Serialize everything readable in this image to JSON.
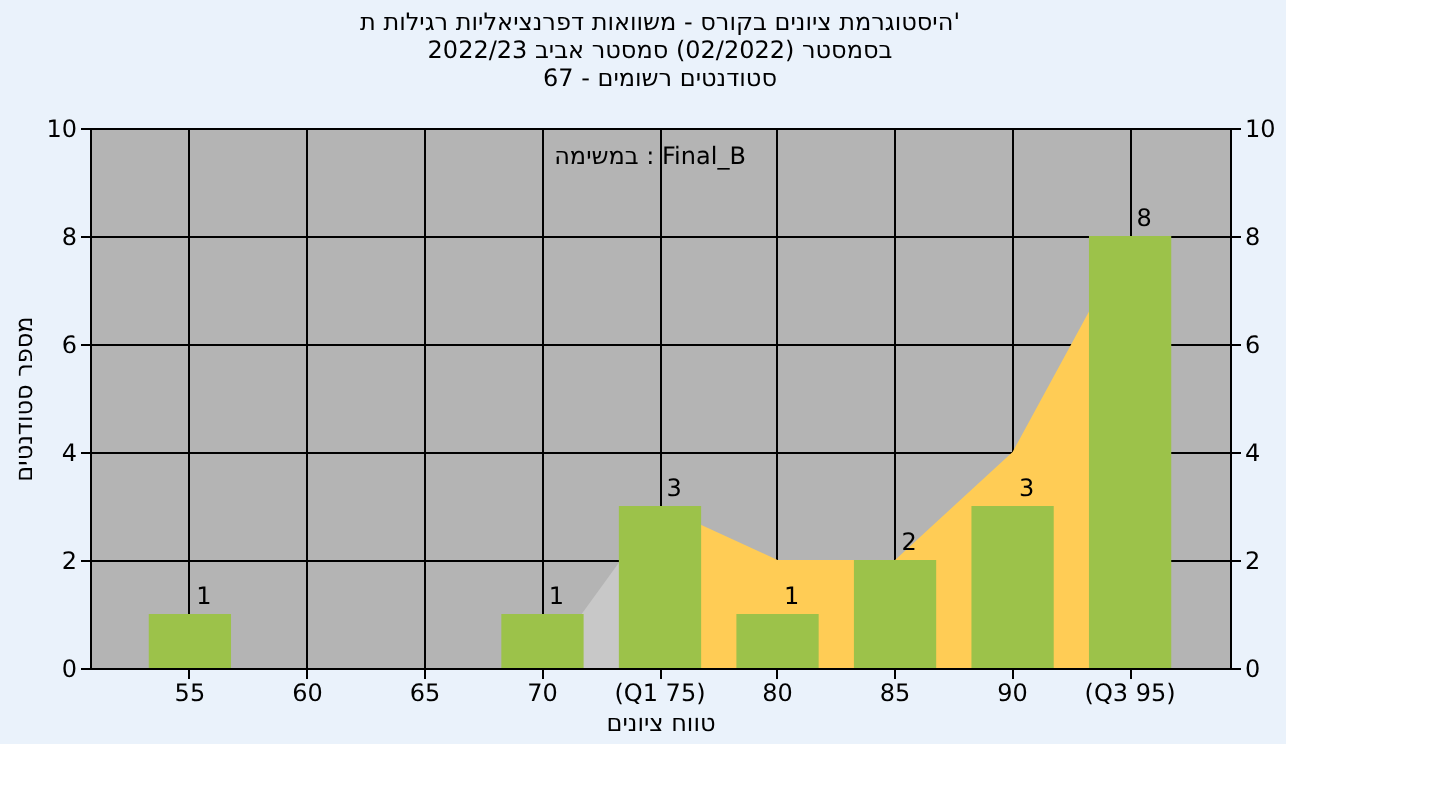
{
  "chart_data": {
    "type": "bar",
    "title": [
      "היסטוגרמת ציונים בקורס - משוואות דפרנציאליות רגילות ת'",
      "בסמסטר (02/2022) סמסטר אביב 2022/23",
      "סטודנטים רשומים - 67"
    ],
    "xlabel": "טווח ציונים",
    "ylabel": "מספר סטודנטים",
    "annotations": [
      "במשימה : Final_B"
    ],
    "categories": [
      "55",
      "60",
      "65",
      "70",
      "(Q1 75)",
      "80",
      "85",
      "90",
      "(Q3 95)"
    ],
    "series": [
      {
        "type": "area",
        "color": "#c8c8c8",
        "values": [
          null,
          null,
          null,
          0,
          3,
          null,
          null,
          null,
          null
        ]
      },
      {
        "type": "area",
        "color": "#ffcc55",
        "values": [
          null,
          null,
          null,
          null,
          3,
          2,
          2,
          4,
          8
        ]
      },
      {
        "color": "#9cc24a",
        "values": [
          1,
          0,
          0,
          1,
          3,
          1,
          2,
          3,
          8
        ],
        "value_labels": [
          "1",
          null,
          null,
          "1",
          "3",
          "1",
          "2",
          "3",
          "8"
        ]
      }
    ],
    "ylim": [
      0,
      10
    ],
    "yticks": [
      0,
      2,
      4,
      6,
      8,
      10
    ],
    "y2lim": [
      0,
      10
    ],
    "y2ticks": [
      0,
      2,
      4,
      6,
      8,
      10
    ],
    "grid": true
  }
}
